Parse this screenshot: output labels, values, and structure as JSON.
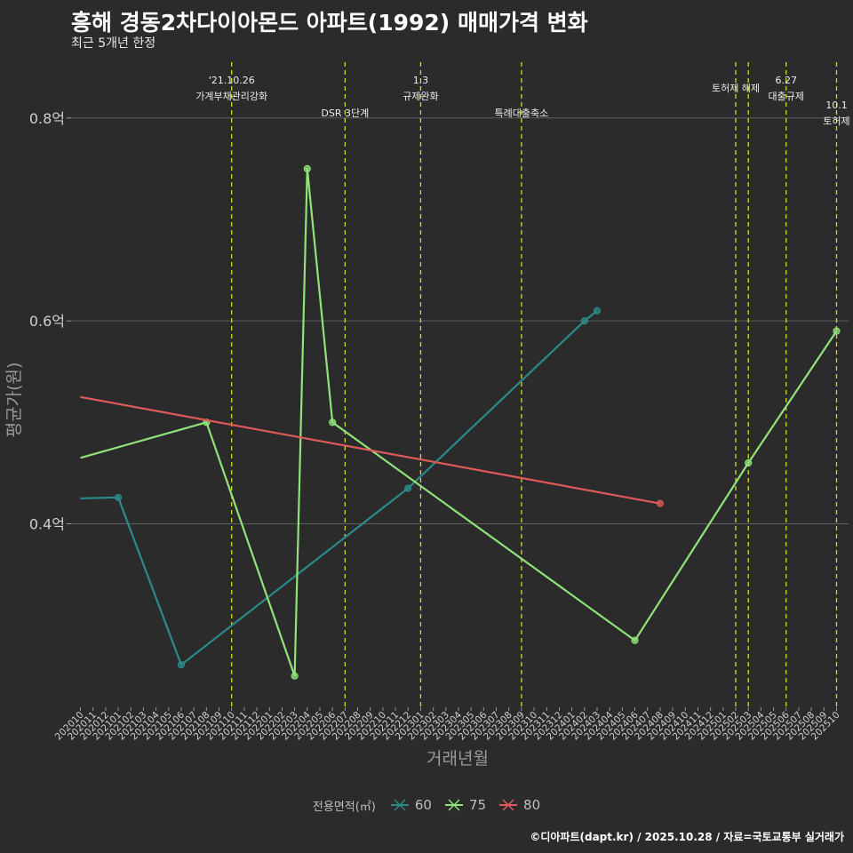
{
  "title": "흥해 경동2차다이아몬드 아파트(1992) 매매가격 변화",
  "subtitle": "최근 5개년 한정",
  "caption": "©디아파트(dapt.kr) / 2025.10.28 / 자료=국토교통부 실거래가",
  "legend": {
    "title": "전용면적(㎡)",
    "items": [
      {
        "label": "60",
        "color": "#2b8a8a"
      },
      {
        "label": "75",
        "color": "#90e37a"
      },
      {
        "label": "80",
        "color": "#e05a5a"
      }
    ]
  },
  "chart_data": {
    "type": "line",
    "title": "흥해 경동2차다이아몬드 아파트(1992) 매매가격 변화",
    "xlabel": "거래년월",
    "ylabel": "평균가(원)",
    "ylim": [
      0.22,
      0.855
    ],
    "yticks": [
      0.4,
      0.6,
      0.8
    ],
    "ytick_labels": [
      "0.4억",
      "0.6억",
      "0.8억"
    ],
    "x_categories": [
      "202010",
      "202011",
      "202012",
      "202101",
      "202102",
      "202103",
      "202104",
      "202105",
      "202106",
      "202107",
      "202108",
      "202109",
      "202110",
      "202111",
      "202112",
      "202201",
      "202202",
      "202203",
      "202204",
      "202205",
      "202206",
      "202207",
      "202208",
      "202209",
      "202210",
      "202211",
      "202212",
      "202301",
      "202302",
      "202303",
      "202304",
      "202305",
      "202306",
      "202307",
      "202308",
      "202309",
      "202310",
      "202311",
      "202312",
      "202401",
      "202402",
      "202403",
      "202404",
      "202405",
      "202406",
      "202407",
      "202408",
      "202409",
      "202410",
      "202411",
      "202412",
      "202501",
      "202502",
      "202503",
      "202504",
      "202505",
      "202506",
      "202507",
      "202508",
      "202509",
      "202510"
    ],
    "series": [
      {
        "name": "60",
        "color": "#2b8a8a",
        "points": [
          {
            "x": "202010",
            "y": 0.425,
            "marker": false
          },
          {
            "x": "202101",
            "y": 0.426,
            "marker": true
          },
          {
            "x": "202106",
            "y": 0.261,
            "marker": true
          },
          {
            "x": "202212",
            "y": 0.435,
            "marker": true
          },
          {
            "x": "202402",
            "y": 0.6,
            "marker": true
          },
          {
            "x": "202403",
            "y": 0.61,
            "marker": true
          }
        ]
      },
      {
        "name": "75",
        "color": "#90e37a",
        "points": [
          {
            "x": "202010",
            "y": 0.465,
            "marker": false
          },
          {
            "x": "202108",
            "y": 0.5,
            "marker": true
          },
          {
            "x": "202203",
            "y": 0.25,
            "marker": true
          },
          {
            "x": "202204",
            "y": 0.75,
            "marker": true
          },
          {
            "x": "202206",
            "y": 0.5,
            "marker": true
          },
          {
            "x": "202406",
            "y": 0.285,
            "marker": true
          },
          {
            "x": "202503",
            "y": 0.46,
            "marker": true
          },
          {
            "x": "202510",
            "y": 0.59,
            "marker": true
          }
        ]
      },
      {
        "name": "80",
        "color": "#e05a5a",
        "points": [
          {
            "x": "202010",
            "y": 0.525,
            "marker": false
          },
          {
            "x": "202408",
            "y": 0.42,
            "marker": true
          }
        ]
      }
    ],
    "events": [
      {
        "x": "202110",
        "lines": [
          "'21.10.26",
          "가계부채관리강화"
        ]
      },
      {
        "x": "202207",
        "lines": [
          "DSR 3단계"
        ]
      },
      {
        "x": "202301",
        "lines": [
          "1.3",
          "규제완화"
        ]
      },
      {
        "x": "202309",
        "lines": [
          "특례대출축소"
        ]
      },
      {
        "x": "202502",
        "lines": [
          "토허제 해제"
        ]
      },
      {
        "x": "202503",
        "lines": [
          ""
        ]
      },
      {
        "x": "202506",
        "lines": [
          "6.27",
          "대출규제"
        ]
      },
      {
        "x": "202510",
        "lines": [
          "10.1",
          "토허제"
        ]
      }
    ]
  }
}
